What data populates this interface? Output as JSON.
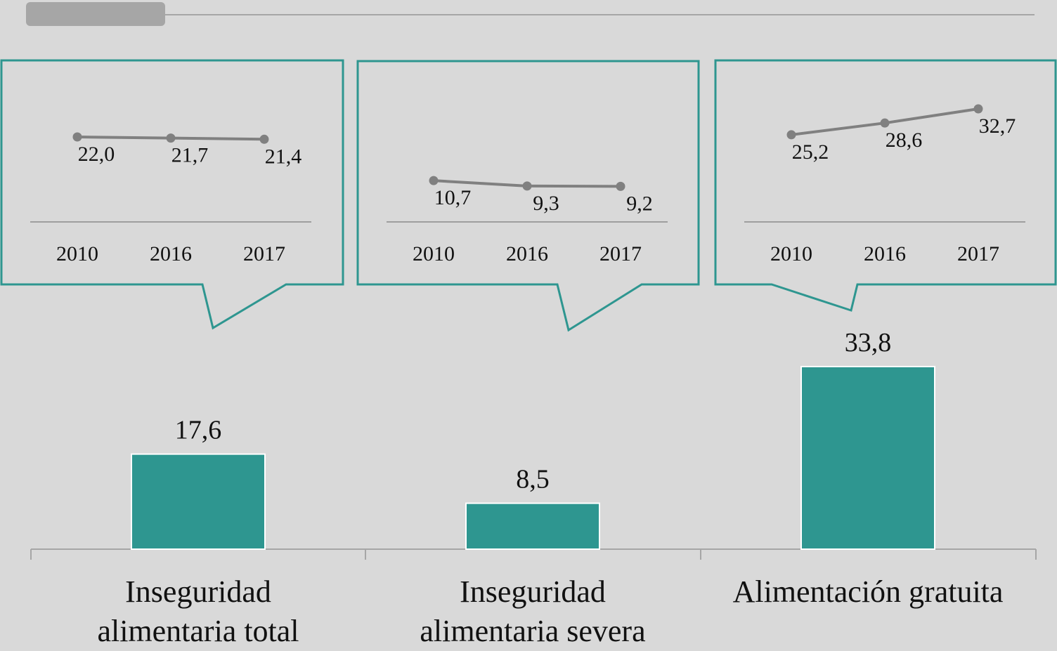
{
  "chart_data": [
    {
      "type": "bar",
      "categories": [
        "Inseguridad alimentaria total",
        "Inseguridad alimentaria severa",
        "Alimentación gratuita"
      ],
      "values": [
        17.6,
        8.5,
        33.8
      ],
      "value_labels": [
        "17,6",
        "8,5",
        "33,8"
      ],
      "color": "#2e9690"
    },
    {
      "type": "line",
      "categories": [
        "2010",
        "2016",
        "2017"
      ],
      "values": [
        22.0,
        21.7,
        21.4
      ],
      "value_labels": [
        "22,0",
        "21,7",
        "21,4"
      ],
      "color": "#808080"
    },
    {
      "type": "line",
      "categories": [
        "2010",
        "2016",
        "2017"
      ],
      "values": [
        10.7,
        9.3,
        9.2
      ],
      "value_labels": [
        "10,7",
        "9,3",
        "9,2"
      ],
      "color": "#808080"
    },
    {
      "type": "line",
      "categories": [
        "2010",
        "2016",
        "2017"
      ],
      "values": [
        25.2,
        28.6,
        32.7
      ],
      "value_labels": [
        "25,2",
        "28,6",
        "32,7"
      ],
      "color": "#808080"
    }
  ]
}
